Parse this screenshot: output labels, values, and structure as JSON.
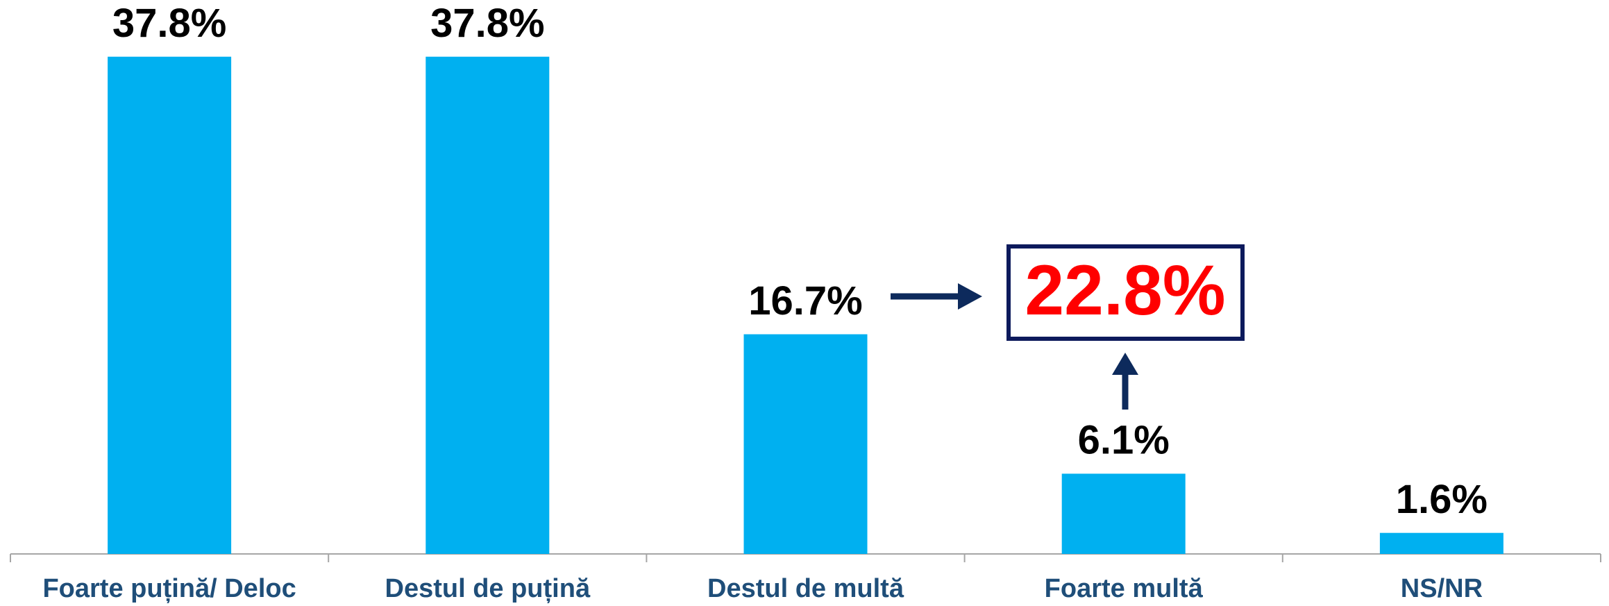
{
  "chart_data": {
    "type": "bar",
    "categories": [
      "Foarte puțină/ Deloc",
      "Destul de puțină",
      "Destul de multă",
      "Foarte multă",
      "NS/NR"
    ],
    "values": [
      37.8,
      37.8,
      16.7,
      6.1,
      1.6
    ],
    "value_labels": [
      "37.8%",
      "37.8%",
      "16.7%",
      "6.1%",
      "1.6%"
    ],
    "color": "#00b0f0",
    "ylim": [
      0,
      40
    ],
    "annotation": "22.8%"
  }
}
